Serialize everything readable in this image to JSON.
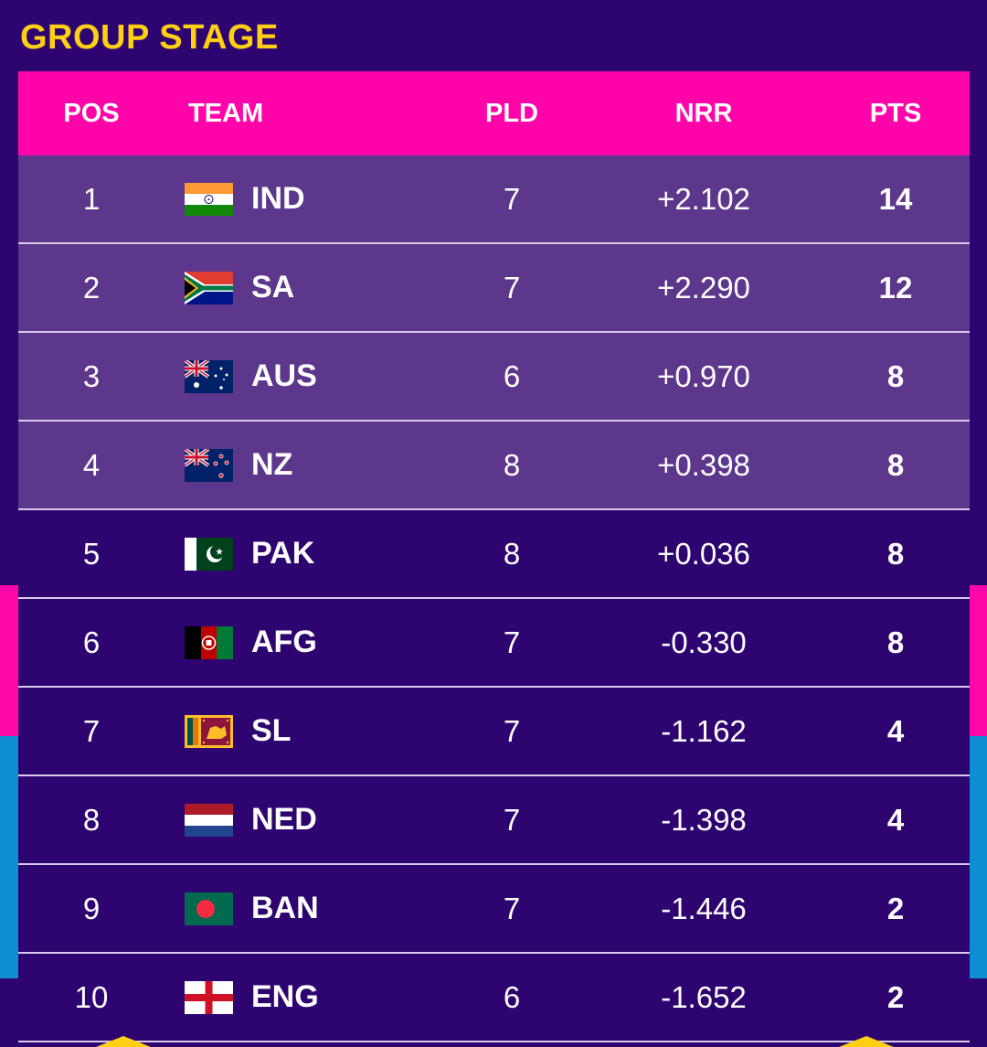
{
  "title": "GROUP STAGE",
  "columns": {
    "pos": "POS",
    "team": "TEAM",
    "pld": "PLD",
    "nrr": "NRR",
    "pts": "PTS"
  },
  "rows": [
    {
      "pos": "1",
      "team": "IND",
      "flag": "india-flag-icon",
      "pld": "7",
      "nrr": "+2.102",
      "pts": "14"
    },
    {
      "pos": "2",
      "team": "SA",
      "flag": "south-africa-flag-icon",
      "pld": "7",
      "nrr": "+2.290",
      "pts": "12"
    },
    {
      "pos": "3",
      "team": "AUS",
      "flag": "australia-flag-icon",
      "pld": "6",
      "nrr": "+0.970",
      "pts": "8"
    },
    {
      "pos": "4",
      "team": "NZ",
      "flag": "new-zealand-flag-icon",
      "pld": "8",
      "nrr": "+0.398",
      "pts": "8"
    },
    {
      "pos": "5",
      "team": "PAK",
      "flag": "pakistan-flag-icon",
      "pld": "8",
      "nrr": "+0.036",
      "pts": "8"
    },
    {
      "pos": "6",
      "team": "AFG",
      "flag": "afghanistan-flag-icon",
      "pld": "7",
      "nrr": "-0.330",
      "pts": "8"
    },
    {
      "pos": "7",
      "team": "SL",
      "flag": "sri-lanka-flag-icon",
      "pld": "7",
      "nrr": "-1.162",
      "pts": "4"
    },
    {
      "pos": "8",
      "team": "NED",
      "flag": "netherlands-flag-icon",
      "pld": "7",
      "nrr": "-1.398",
      "pts": "4"
    },
    {
      "pos": "9",
      "team": "BAN",
      "flag": "bangladesh-flag-icon",
      "pld": "7",
      "nrr": "-1.446",
      "pts": "2"
    },
    {
      "pos": "10",
      "team": "ENG",
      "flag": "england-flag-icon",
      "pld": "6",
      "nrr": "-1.652",
      "pts": "2"
    }
  ],
  "colors": {
    "background": "#2e0570",
    "header": "#ff05a9",
    "qualified_row": "#5c378c",
    "title": "#ffcf14",
    "accent_blue": "#0f8ed6"
  }
}
